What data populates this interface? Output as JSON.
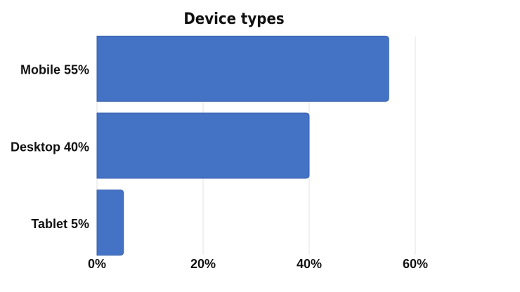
{
  "chart_data": {
    "type": "bar",
    "orientation": "horizontal",
    "title": "Device types",
    "categories": [
      "Mobile 55%",
      "Desktop 40%",
      "Tablet 5%"
    ],
    "values": [
      55,
      40,
      5
    ],
    "color": "#4472c4",
    "xlim": [
      0,
      60
    ],
    "xticks": [
      {
        "value": 0,
        "label": "0%"
      },
      {
        "value": 20,
        "label": "20%"
      },
      {
        "value": 40,
        "label": "40%"
      },
      {
        "value": 60,
        "label": "60%"
      }
    ],
    "grid": true
  }
}
